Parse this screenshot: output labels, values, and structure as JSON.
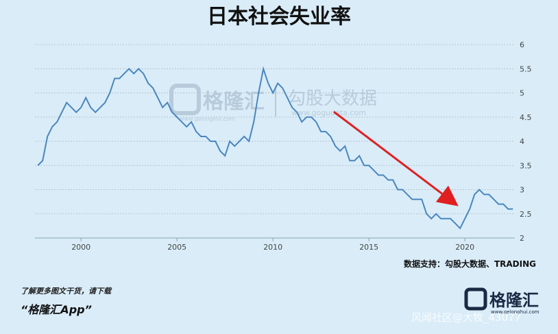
{
  "chart_data": {
    "type": "line",
    "title": "日本社会失业率",
    "x": [
      1997.75,
      1998.0,
      1998.25,
      1998.5,
      1998.75,
      1999.0,
      1999.25,
      1999.5,
      1999.75,
      2000.0,
      2000.25,
      2000.5,
      2000.75,
      2001.0,
      2001.25,
      2001.5,
      2001.75,
      2002.0,
      2002.25,
      2002.5,
      2002.75,
      2003.0,
      2003.25,
      2003.5,
      2003.75,
      2004.0,
      2004.25,
      2004.5,
      2004.75,
      2005.0,
      2005.25,
      2005.5,
      2005.75,
      2006.0,
      2006.25,
      2006.5,
      2006.75,
      2007.0,
      2007.25,
      2007.5,
      2007.75,
      2008.0,
      2008.25,
      2008.5,
      2008.75,
      2009.0,
      2009.25,
      2009.5,
      2009.75,
      2010.0,
      2010.25,
      2010.5,
      2010.75,
      2011.0,
      2011.25,
      2011.5,
      2011.75,
      2012.0,
      2012.25,
      2012.5,
      2012.75,
      2013.0,
      2013.25,
      2013.5,
      2013.75,
      2014.0,
      2014.25,
      2014.5,
      2014.75,
      2015.0,
      2015.25,
      2015.5,
      2015.75,
      2016.0,
      2016.25,
      2016.5,
      2016.75,
      2017.0,
      2017.25,
      2017.5,
      2017.75,
      2018.0,
      2018.25,
      2018.5,
      2018.75,
      2019.0,
      2019.25,
      2019.5,
      2019.75,
      2020.0,
      2020.25,
      2020.5,
      2020.75,
      2021.0,
      2021.25,
      2021.5,
      2021.75,
      2022.0,
      2022.25,
      2022.5
    ],
    "series": [
      {
        "color": "#4a86bd",
        "values": [
          3.5,
          3.6,
          4.1,
          4.3,
          4.4,
          4.6,
          4.8,
          4.7,
          4.6,
          4.7,
          4.9,
          4.7,
          4.6,
          4.7,
          4.8,
          5.0,
          5.3,
          5.3,
          5.4,
          5.5,
          5.4,
          5.5,
          5.4,
          5.2,
          5.1,
          4.9,
          4.7,
          4.8,
          4.6,
          4.5,
          4.4,
          4.3,
          4.4,
          4.2,
          4.1,
          4.1,
          4.0,
          4.0,
          3.8,
          3.7,
          4.0,
          3.9,
          4.0,
          4.1,
          4.0,
          4.4,
          5.0,
          5.5,
          5.2,
          5.0,
          5.2,
          5.1,
          4.9,
          4.7,
          4.6,
          4.4,
          4.5,
          4.5,
          4.4,
          4.2,
          4.2,
          4.1,
          3.9,
          3.8,
          3.9,
          3.6,
          3.6,
          3.7,
          3.5,
          3.5,
          3.4,
          3.3,
          3.3,
          3.2,
          3.2,
          3.0,
          3.0,
          2.9,
          2.8,
          2.8,
          2.8,
          2.5,
          2.4,
          2.5,
          2.4,
          2.4,
          2.4,
          2.3,
          2.2,
          2.4,
          2.6,
          2.9,
          3.0,
          2.9,
          2.9,
          2.8,
          2.7,
          2.7,
          2.6,
          2.6
        ]
      }
    ],
    "xlim": [
      1997.6,
      2022.6
    ],
    "ylim": [
      2,
      6
    ],
    "xticks": [
      2000,
      2005,
      2010,
      2015,
      2020
    ],
    "yticks": [
      2,
      2.5,
      3,
      3.5,
      4,
      4.5,
      5,
      5.5,
      6
    ],
    "grid": true,
    "source": "数据支持：勾股大数据、TRADING"
  },
  "watermark": {
    "brand": "格隆汇",
    "brand_url": "www.gelonghui.com",
    "partner": "勾股大数据",
    "partner_url": "www.gogudata.com"
  },
  "footer": {
    "promo": "了解更多图文干货，请下载",
    "app": "“格隆汇App”",
    "logo": "格隆汇",
    "logo_url": "www.gelonghui.com",
    "credit": "风闻社区@大牧_43077"
  }
}
